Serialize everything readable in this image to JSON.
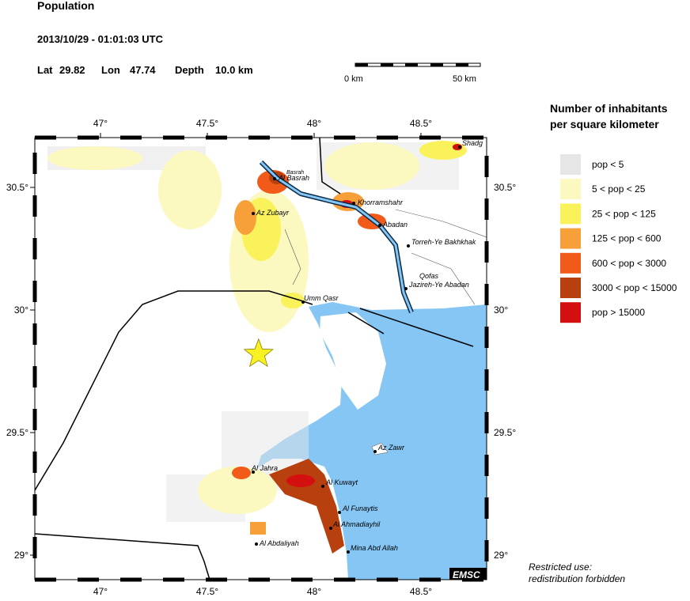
{
  "header": {
    "title": "Population",
    "datetime": "2013/10/29 - 01:01:03 UTC",
    "lat_label": "Lat",
    "lat": 29.82,
    "lon_label": "Lon",
    "lon": 47.74,
    "depth_label": "Depth",
    "depth": "10.0 km"
  },
  "scale_bar": {
    "start": "0 km",
    "end": "50 km"
  },
  "legend": {
    "title_lines": [
      "Number of inhabitants",
      "per square kilometer"
    ],
    "items": [
      {
        "label": "pop < 5",
        "color": "#e6e6e6"
      },
      {
        "label": "5 < pop < 25",
        "color": "#fbf8c0"
      },
      {
        "label": "25 < pop < 125",
        "color": "#f9f25a"
      },
      {
        "label": "125 < pop < 600",
        "color": "#f7a03a"
      },
      {
        "label": "600 < pop < 3000",
        "color": "#f25a1a"
      },
      {
        "label": "3000 < pop < 15000",
        "color": "#b8400f"
      },
      {
        "label": "pop > 15000",
        "color": "#d40f0f"
      }
    ]
  },
  "map": {
    "lon_ticks": [
      {
        "value": 47,
        "label": "47°"
      },
      {
        "value": 47.5,
        "label": "47.5°"
      },
      {
        "value": 48,
        "label": "48°"
      },
      {
        "value": 48.5,
        "label": "48.5°"
      }
    ],
    "lat_ticks": [
      {
        "value": 30.5,
        "label": "30.5°"
      },
      {
        "value": 30,
        "label": "30°"
      },
      {
        "value": 29.5,
        "label": "29.5°"
      },
      {
        "value": 29,
        "label": "29°"
      }
    ],
    "cities": [
      "Al Basrah",
      "Basrah",
      "Az Zubayr",
      "Khorramshahr",
      "Abadan",
      "Torreh-Ye Bakhkhak",
      "Qofas",
      "Jazireh-Ye Abadan",
      "Umm Qasr",
      "Az Zawr",
      "Al Jahra",
      "Al Kuwayt",
      "Al Funaytis",
      "Al Ahmadiayhil",
      "Al Abdaliyah",
      "Mina Abd Allah",
      "Shadg"
    ],
    "credit": "EMSC"
  },
  "footer": {
    "lines": [
      "Restricted use:",
      "redistribution forbidden"
    ]
  }
}
